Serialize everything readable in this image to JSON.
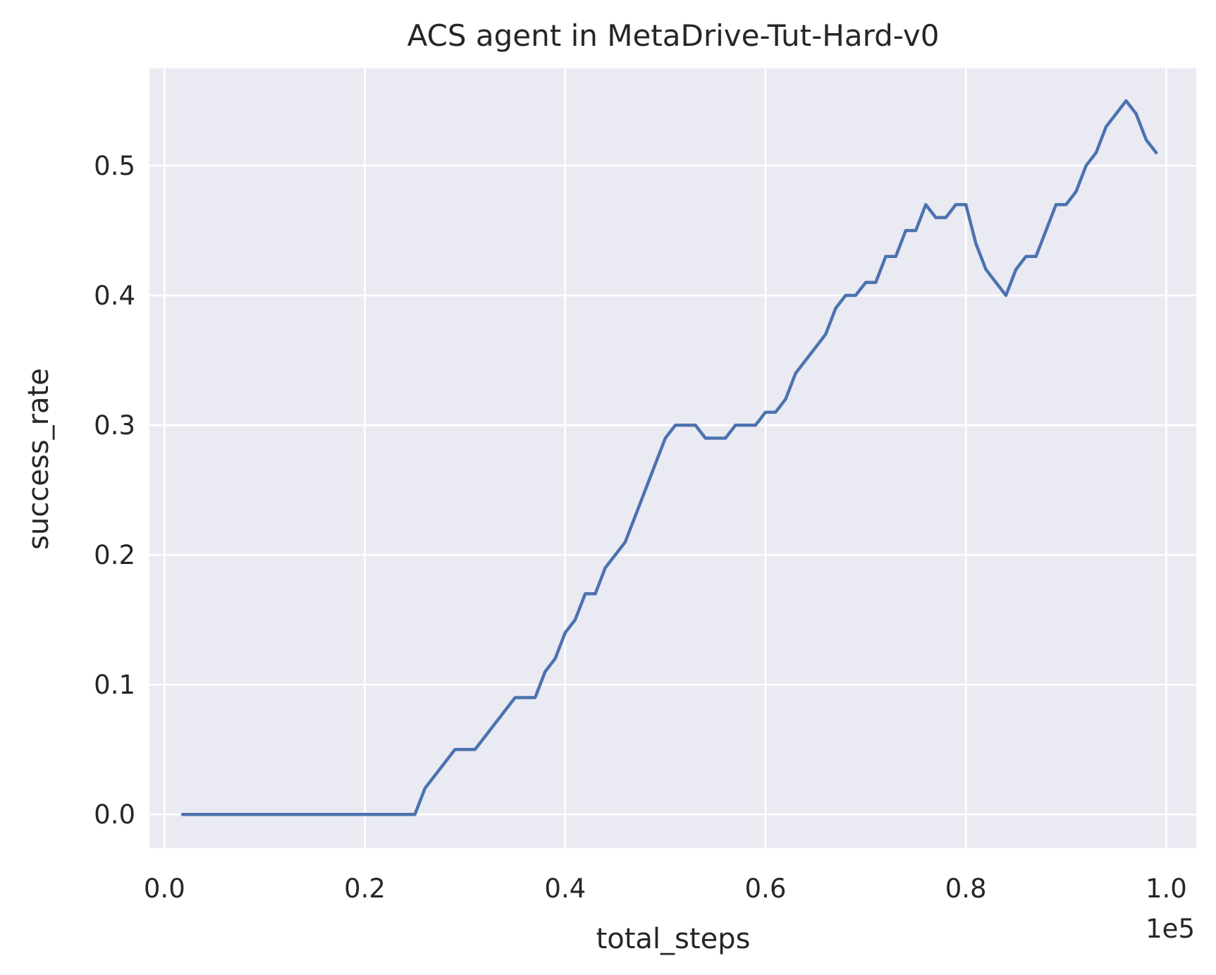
{
  "chart_data": {
    "type": "line",
    "title": "ACS agent in MetaDrive-Tut-Hard-v0",
    "xlabel": "total_steps",
    "ylabel": "success_rate",
    "x_offset_text": "1e5",
    "x_scale": 100000,
    "xlim": [
      -0.015,
      1.03
    ],
    "ylim": [
      -0.026,
      0.575
    ],
    "xticks": [
      0.0,
      0.2,
      0.4,
      0.6,
      0.8,
      1.0
    ],
    "xtick_labels": [
      "0.0",
      "0.2",
      "0.4",
      "0.6",
      "0.8",
      "1.0"
    ],
    "yticks": [
      0.0,
      0.1,
      0.2,
      0.3,
      0.4,
      0.5
    ],
    "ytick_labels": [
      "0.0",
      "0.1",
      "0.2",
      "0.3",
      "0.4",
      "0.5"
    ],
    "grid": true,
    "colors": {
      "background": "#eaeaf2",
      "grid": "#ffffff",
      "line": "#4c72b0"
    },
    "series": [
      {
        "x": [
          1800,
          25000,
          26000,
          27000,
          28000,
          29000,
          30000,
          31000,
          32000,
          33000,
          34000,
          35000,
          36000,
          37000,
          38000,
          39000,
          40000,
          41000,
          42000,
          43000,
          44000,
          45000,
          46000,
          47000,
          48000,
          49000,
          50000,
          51000,
          52000,
          53000,
          54000,
          55000,
          56000,
          57000,
          58000,
          59000,
          60000,
          61000,
          62000,
          63000,
          64000,
          65000,
          66000,
          67000,
          68000,
          69000,
          70000,
          71000,
          72000,
          73000,
          74000,
          75000,
          76000,
          77000,
          78000,
          79000,
          80000,
          81000,
          82000,
          83000,
          84000,
          85000,
          86000,
          87000,
          88000,
          89000,
          90000,
          91000,
          92000,
          93000,
          94000,
          95000,
          96000,
          97000,
          98000,
          99000
        ],
        "y": [
          0.0,
          0.0,
          0.02,
          0.03,
          0.04,
          0.05,
          0.05,
          0.05,
          0.06,
          0.07,
          0.08,
          0.09,
          0.09,
          0.09,
          0.11,
          0.12,
          0.14,
          0.15,
          0.17,
          0.17,
          0.19,
          0.2,
          0.21,
          0.23,
          0.25,
          0.27,
          0.29,
          0.3,
          0.3,
          0.3,
          0.29,
          0.29,
          0.29,
          0.3,
          0.3,
          0.3,
          0.31,
          0.31,
          0.32,
          0.34,
          0.35,
          0.36,
          0.37,
          0.39,
          0.4,
          0.4,
          0.41,
          0.41,
          0.43,
          0.43,
          0.45,
          0.45,
          0.47,
          0.46,
          0.46,
          0.47,
          0.47,
          0.44,
          0.42,
          0.41,
          0.4,
          0.42,
          0.43,
          0.43,
          0.45,
          0.47,
          0.47,
          0.48,
          0.5,
          0.51,
          0.53,
          0.54,
          0.55,
          0.54,
          0.52,
          0.51
        ]
      }
    ]
  }
}
